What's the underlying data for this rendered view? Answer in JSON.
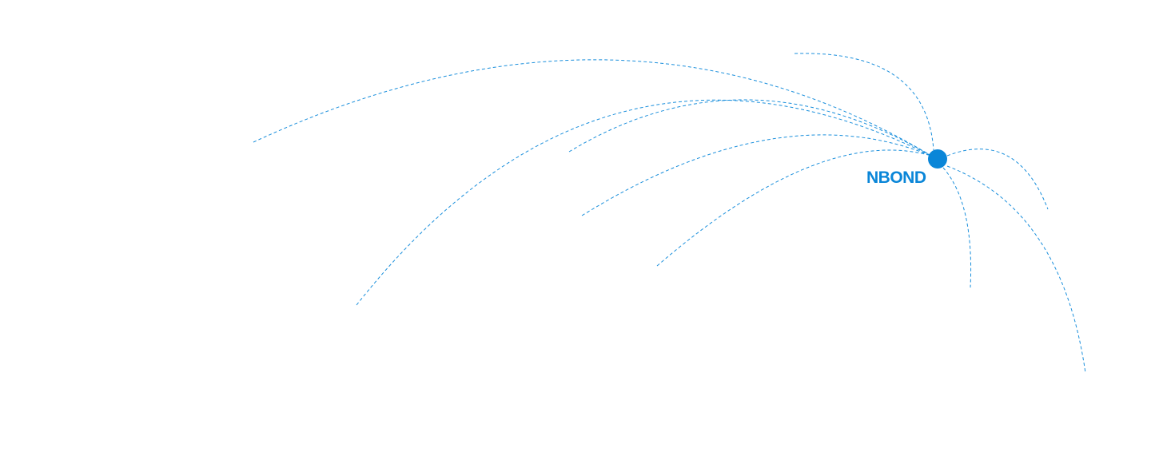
{
  "hub": {
    "label": "NBOND",
    "color": "#0a86d8"
  },
  "arc_color": "#1a8fdc",
  "arc_count": 9
}
